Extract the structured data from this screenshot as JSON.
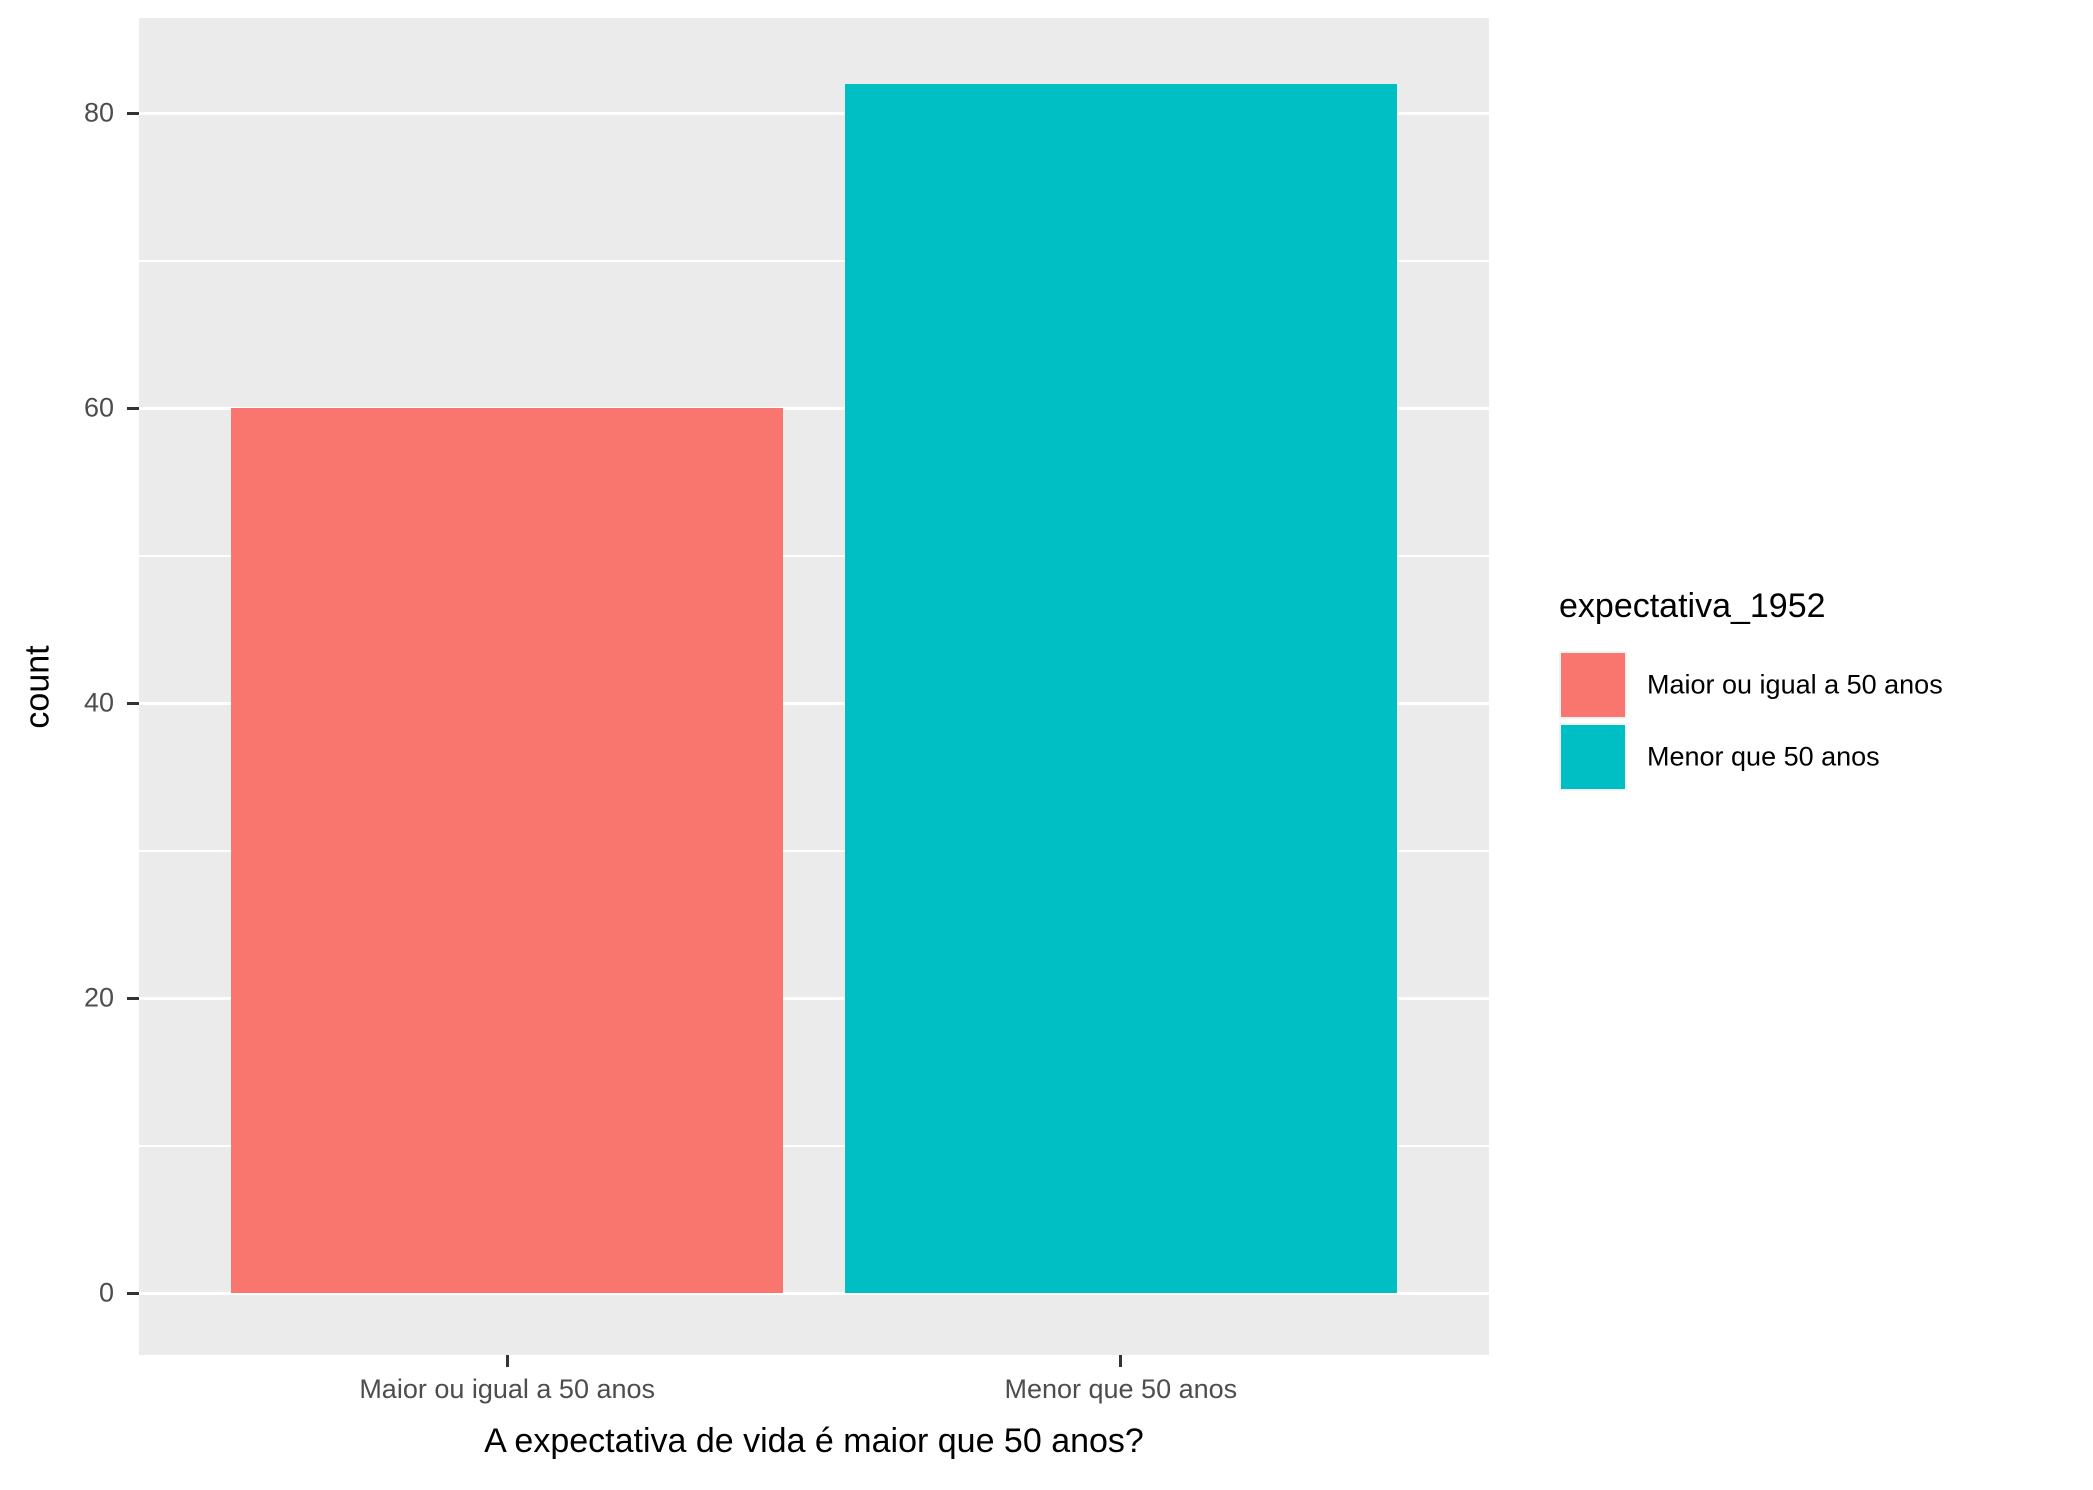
{
  "chart_data": {
    "type": "bar",
    "categories": [
      "Maior ou igual a 50 anos",
      "Menor que 50 anos"
    ],
    "values": [
      60,
      82
    ],
    "bar_colors": [
      "#F8766D",
      "#00BFC4"
    ],
    "xlabel": "A expectativa de vida é maior que 50 anos?",
    "ylabel": "count",
    "ylim": [
      -4.2,
      86.4
    ],
    "yticks_major": [
      0,
      20,
      40,
      60,
      80
    ],
    "yticks_minor": [
      10,
      30,
      50,
      70
    ],
    "ytick_labels": [
      "0",
      "20",
      "40",
      "60",
      "80"
    ],
    "grid": true,
    "panel_bg": "#EBEBEB",
    "grid_color": "#FFFFFF",
    "axis_text_color": "#4D4D4D",
    "tick_color": "#333333",
    "legend": {
      "title": "expectativa_1952",
      "position": "right",
      "entries": [
        {
          "label": "Maior ou igual a 50 anos",
          "color": "#F8766D"
        },
        {
          "label": "Menor que 50 anos",
          "color": "#00BFC4"
        }
      ]
    }
  }
}
